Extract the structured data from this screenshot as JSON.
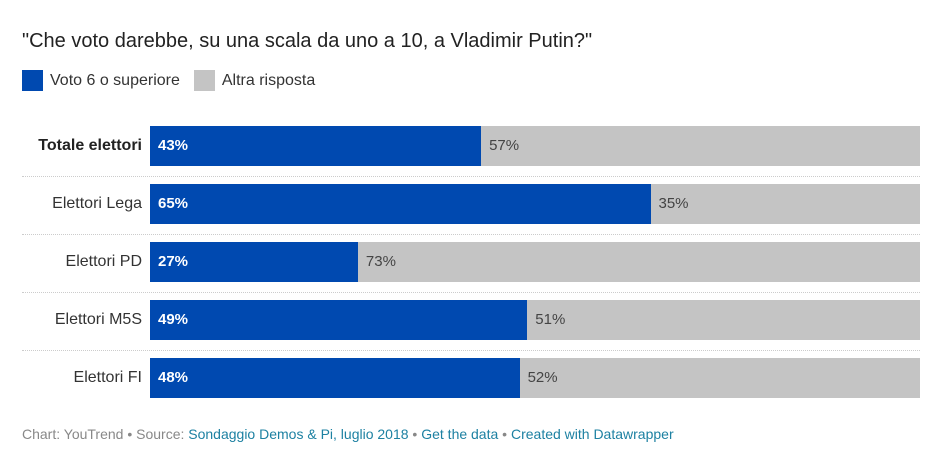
{
  "title": "\"Che voto darebbe, su una scala da uno a 10, a Vladimir Putin?\"",
  "colors": {
    "primary": "#0049b0",
    "secondary": "#c4c4c4"
  },
  "chart_data": {
    "type": "bar",
    "orientation": "horizontal-stacked-100",
    "title": "\"Che voto darebbe, su una scala da uno a 10, a Vladimir Putin?\"",
    "categories": [
      "Totale elettori",
      "Elettori Lega",
      "Elettori PD",
      "Elettori M5S",
      "Elettori FI"
    ],
    "series": [
      {
        "name": "Voto 6 o superiore",
        "values": [
          43,
          65,
          27,
          49,
          48
        ],
        "labels": [
          "43%",
          "65%",
          "27%",
          "49%",
          "48%"
        ]
      },
      {
        "name": "Altra risposta",
        "values": [
          57,
          35,
          73,
          51,
          52
        ],
        "labels": [
          "57%",
          "35%",
          "73%",
          "51%",
          "52%"
        ]
      }
    ],
    "xlim": [
      0,
      100
    ],
    "legend": "top-left"
  },
  "footer": {
    "prefix": "Chart: YouTrend • Source: ",
    "source_link": "Sondaggio Demos & Pi, luglio 2018",
    "sep1": " • ",
    "data_link": "Get the data",
    "sep2": " • ",
    "created_link": "Created with Datawrapper"
  }
}
